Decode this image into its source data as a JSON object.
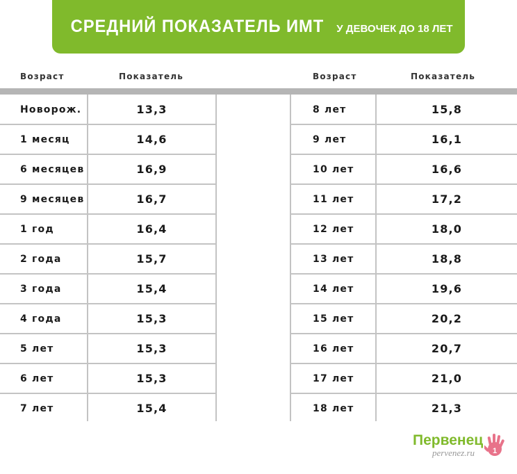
{
  "banner": {
    "title": "СРЕДНИЙ ПОКАЗАТЕЛЬ ИМТ",
    "subtitle": "У ДЕВОЧЕК ДО 18 ЛЕТ",
    "color": "#80ba2c"
  },
  "headers": {
    "age": "Возраст",
    "value": "Показатель"
  },
  "left_rows": [
    {
      "age": "Новорож.",
      "value": "13,3"
    },
    {
      "age": "1 месяц",
      "value": "14,6"
    },
    {
      "age": "6 месяцев",
      "value": "16,9"
    },
    {
      "age": "9 месяцев",
      "value": "16,7"
    },
    {
      "age": "1 год",
      "value": "16,4"
    },
    {
      "age": "2 года",
      "value": "15,7"
    },
    {
      "age": "3 года",
      "value": "15,4"
    },
    {
      "age": "4 года",
      "value": "15,3"
    },
    {
      "age": "5 лет",
      "value": "15,3"
    },
    {
      "age": "6 лет",
      "value": "15,3"
    },
    {
      "age": "7 лет",
      "value": "15,4"
    }
  ],
  "right_rows": [
    {
      "age": "8 лет",
      "value": "15,8"
    },
    {
      "age": "9 лет",
      "value": "16,1"
    },
    {
      "age": "10 лет",
      "value": "16,6"
    },
    {
      "age": "11 лет",
      "value": "17,2"
    },
    {
      "age": "12 лет",
      "value": "18,0"
    },
    {
      "age": "13 лет",
      "value": "18,8"
    },
    {
      "age": "14 лет",
      "value": "19,6"
    },
    {
      "age": "15 лет",
      "value": "20,2"
    },
    {
      "age": "16 лет",
      "value": "20,7"
    },
    {
      "age": "17 лет",
      "value": "21,0"
    },
    {
      "age": "18 лет",
      "value": "21,3"
    }
  ],
  "logo": {
    "name": "Первенец",
    "url": "pervenez.ru",
    "hand_color": "#e8738a"
  }
}
